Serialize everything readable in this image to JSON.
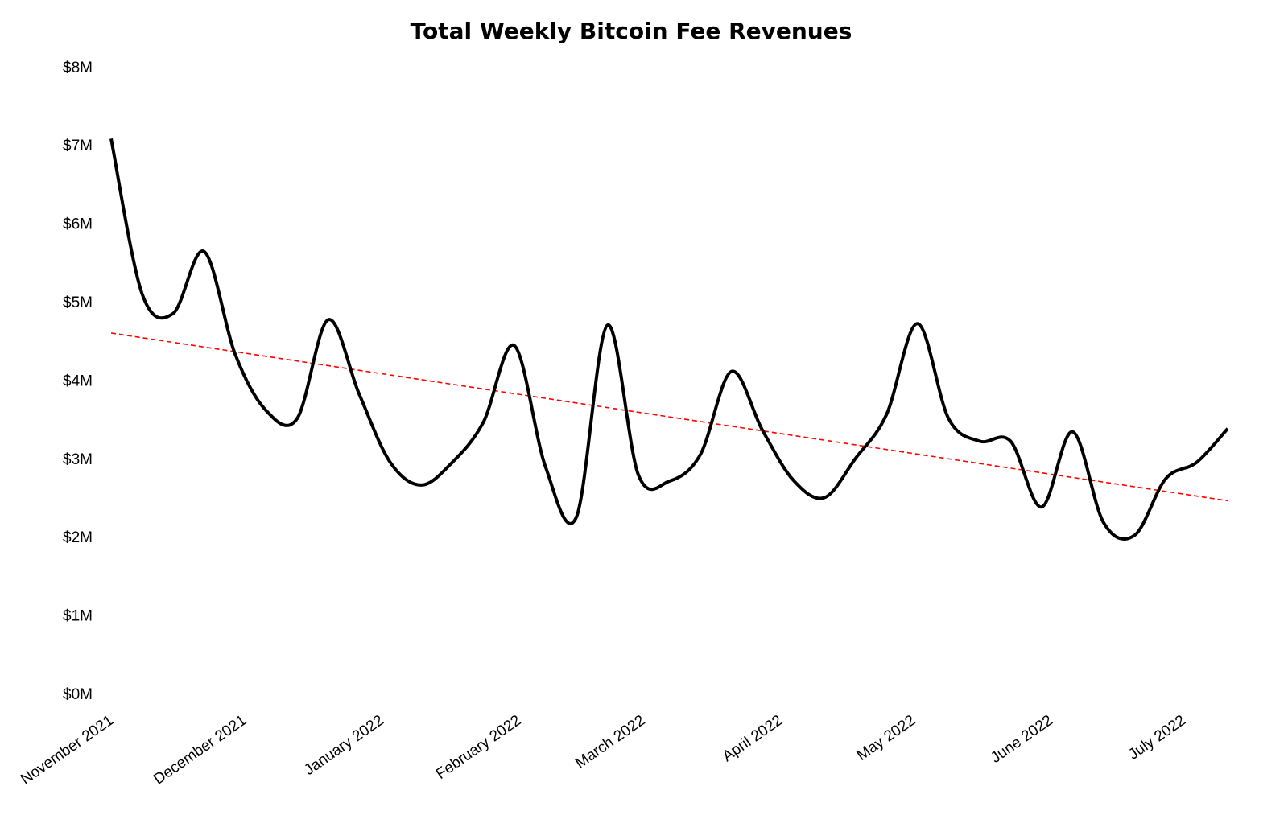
{
  "chart_data": {
    "type": "line",
    "title": "Total Weekly Bitcoin Fee Revenues",
    "xlabel": "",
    "ylabel": "",
    "ylim": [
      0,
      8000000
    ],
    "y_ticks": [
      0,
      1000000,
      2000000,
      3000000,
      4000000,
      5000000,
      6000000,
      7000000,
      8000000
    ],
    "y_tick_labels": [
      "$0M",
      "$1M",
      "$2M",
      "$3M",
      "$4M",
      "$5M",
      "$6M",
      "$7M",
      "$8M"
    ],
    "x_tick_dates": [
      "2021-11-01",
      "2021-12-01",
      "2022-01-01",
      "2022-02-01",
      "2022-03-01",
      "2022-04-01",
      "2022-05-01",
      "2022-06-01",
      "2022-07-01"
    ],
    "x_tick_labels": [
      "November 2021",
      "December 2021",
      "January 2022",
      "February 2022",
      "March 2022",
      "April 2022",
      "May 2022",
      "June 2022",
      "July 2022"
    ],
    "grid": false,
    "legend": "none",
    "x_start": "2021-11-01",
    "x_step_days": 7,
    "series": [
      {
        "color": "#000000",
        "smooth": true,
        "values": [
          7.08,
          5.1,
          4.85,
          5.64,
          4.33,
          3.61,
          3.51,
          4.77,
          3.82,
          2.95,
          2.66,
          2.95,
          3.46,
          4.44,
          2.9,
          2.25,
          4.7,
          2.79,
          2.71,
          3.05,
          4.11,
          3.36,
          2.72,
          2.5,
          3.0,
          3.56,
          4.72,
          3.51,
          3.22,
          3.22,
          2.38,
          3.34,
          2.18,
          2.02,
          2.74,
          2.95,
          3.38
        ],
        "unit": "million USD"
      }
    ],
    "trendline": {
      "type": "linear",
      "color": "#ff0000",
      "style": "dashed",
      "start_value": 4.6,
      "end_value": 2.46
    }
  }
}
